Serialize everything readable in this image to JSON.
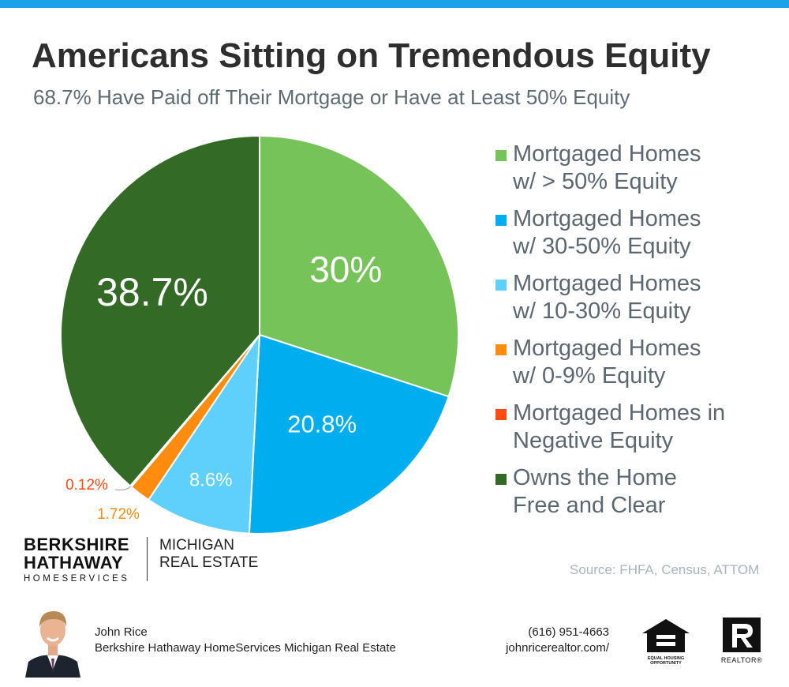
{
  "header": {
    "title": "Americans Sitting on Tremendous Equity",
    "subtitle": "68.7% Have Paid off Their Mortgage or Have at Least 50% Equity"
  },
  "chart_data": {
    "type": "pie",
    "slices": [
      {
        "label": "Mortgaged Homes\nw/ > 50% Equity",
        "value": 30,
        "display": "30%",
        "color": "#76c35a",
        "label_color": "#ffffff"
      },
      {
        "label": "Mortgaged Homes\nw/ 30-50% Equity",
        "value": 20.8,
        "display": "20.8%",
        "color": "#00aeef",
        "label_color": "#ffffff"
      },
      {
        "label": "Mortgaged Homes\nw/ 10-30% Equity",
        "value": 8.6,
        "display": "8.6%",
        "color": "#5ed0fb",
        "label_color": "#ffffff"
      },
      {
        "label": "Mortgaged Homes\nw/ 0-9% Equity",
        "value": 1.72,
        "display": "1.72%",
        "color": "#ff8b0f",
        "label_color": "#ff8b0f"
      },
      {
        "label": "Mortgaged Homes in\nNegative Equity",
        "value": 0.12,
        "display": "0.12%",
        "color": "#ff4a12",
        "label_color": "#ff4a12"
      },
      {
        "label": "Owns the Home\nFree and Clear",
        "value": 38.7,
        "display": "38.7%",
        "color": "#336b26",
        "label_color": "#ffffff"
      }
    ],
    "legend_position": "right"
  },
  "source": "Source: FHFA, Census, ATTOM",
  "brand": {
    "line1": "BERKSHIRE",
    "line2": "HATHAWAY",
    "line3": "HOMESERVICES",
    "right1": "MICHIGAN",
    "right2": "REAL ESTATE"
  },
  "footer": {
    "agent_name": "John Rice",
    "agent_company": "Berkshire Hathaway HomeServices Michigan Real Estate",
    "phone": "(616) 951-4663",
    "website": "johnricerealtor.com/",
    "eho_text": "EQUAL HOUSING\nOPPORTUNITY",
    "realtor_text": "REALTOR®"
  }
}
